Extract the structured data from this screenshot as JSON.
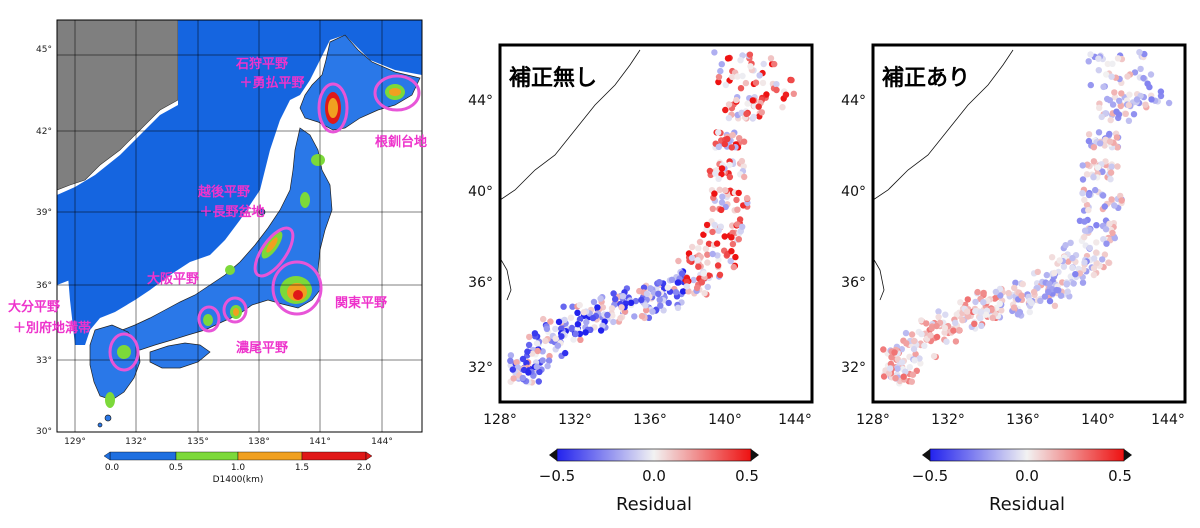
{
  "left_map": {
    "lat_ticks": [
      "45°",
      "42°",
      "39°",
      "36°",
      "33°",
      "30°"
    ],
    "lon_ticks": [
      "129°",
      "132°",
      "135°",
      "138°",
      "141°",
      "144°"
    ],
    "colorbar": {
      "ticks": [
        "0.0",
        "0.5",
        "1.0",
        "1.5",
        "2.0"
      ],
      "label": "D1400(km)",
      "colors": [
        "#1e6fe0",
        "#7cd93a",
        "#f0a020",
        "#e01818"
      ]
    },
    "regions": {
      "ishikari_line1": "石狩平野",
      "ishikari_line2": "＋勇払平野",
      "nemuro": "根釧台地",
      "echigo_line1": "越後平野",
      "echigo_line2": "＋長野盆地",
      "osaka": "大阪平野",
      "kanto": "関東平野",
      "nobi": "濃尾平野",
      "oita_line1": "大分平野",
      "oita_line2": "＋別府地溝帯"
    },
    "colors": {
      "sea": "#1565e0",
      "land": "#1e6fe0",
      "foreign_land": "#7f7f7f",
      "highlight": "#e855d8"
    }
  },
  "residual_maps": [
    {
      "title": "補正無し",
      "lat_ticks": [
        "44°",
        "40°",
        "36°",
        "32°"
      ],
      "lon_ticks": [
        "128°",
        "132°",
        "136°",
        "140°",
        "144°"
      ],
      "colorbar": {
        "ticks": [
          "−0.5",
          "0.0",
          "0.5"
        ],
        "label": "Residual"
      }
    },
    {
      "title": "補正あり",
      "lat_ticks": [
        "44°",
        "40°",
        "36°",
        "32°"
      ],
      "lon_ticks": [
        "128°",
        "132°",
        "136°",
        "140°",
        "144°"
      ],
      "colorbar": {
        "ticks": [
          "−0.5",
          "0.0",
          "0.5"
        ],
        "label": "Residual"
      }
    }
  ]
}
